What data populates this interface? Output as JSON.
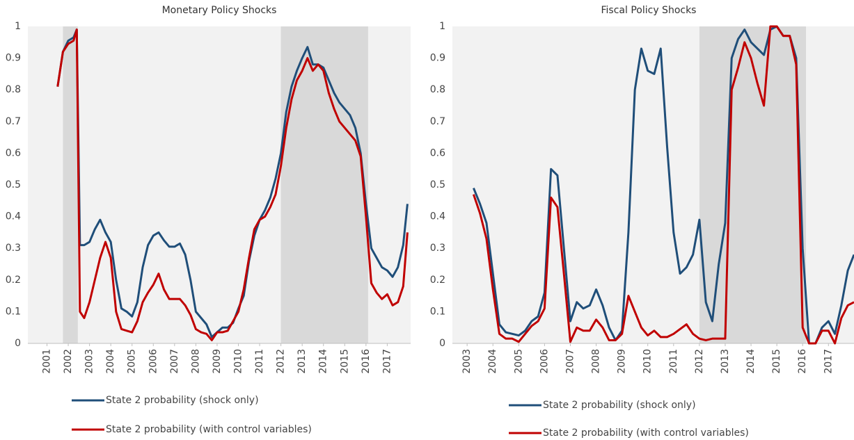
{
  "chart_data": [
    {
      "type": "line",
      "title": "Monetary Policy Shocks",
      "xlim": [
        2000.1,
        2018.1
      ],
      "xticks": [
        2001,
        2002,
        2003,
        2004,
        2005,
        2006,
        2007,
        2008,
        2009,
        2010,
        2011,
        2012,
        2013,
        2014,
        2015,
        2016,
        2017
      ],
      "ylim": [
        0,
        1
      ],
      "yticks": [
        0,
        0.1,
        0.2,
        0.3,
        0.4,
        0.5,
        0.6,
        0.7,
        0.8,
        0.9,
        1
      ],
      "grid": false,
      "shaded_ranges": [
        [
          2001.75,
          2002.45
        ],
        [
          2012.0,
          2016.1
        ]
      ],
      "x": [
        2001.5,
        2001.75,
        2002,
        2002.25,
        2002.4,
        2002.55,
        2002.75,
        2003,
        2003.25,
        2003.5,
        2003.75,
        2004,
        2004.25,
        2004.5,
        2004.75,
        2005,
        2005.25,
        2005.5,
        2005.75,
        2006,
        2006.25,
        2006.5,
        2006.75,
        2007,
        2007.25,
        2007.5,
        2007.75,
        2008,
        2008.25,
        2008.5,
        2008.75,
        2009,
        2009.25,
        2009.5,
        2009.75,
        2010,
        2010.25,
        2010.5,
        2010.75,
        2011,
        2011.25,
        2011.5,
        2011.75,
        2012,
        2012.25,
        2012.5,
        2012.75,
        2013,
        2013.25,
        2013.5,
        2013.75,
        2014,
        2014.25,
        2014.5,
        2014.75,
        2015,
        2015.25,
        2015.5,
        2015.75,
        2016,
        2016.25,
        2016.5,
        2016.75,
        2017,
        2017.25,
        2017.5,
        2017.75,
        2017.95
      ],
      "series": [
        {
          "name": "State 2 probability (shock only)",
          "color": "#1f4e79",
          "values": [
            0.81,
            0.92,
            0.955,
            0.965,
            0.99,
            0.31,
            0.31,
            0.32,
            0.36,
            0.39,
            0.35,
            0.32,
            0.2,
            0.11,
            0.1,
            0.085,
            0.13,
            0.24,
            0.31,
            0.34,
            0.35,
            0.325,
            0.305,
            0.305,
            0.315,
            0.28,
            0.2,
            0.1,
            0.08,
            0.06,
            0.02,
            0.035,
            0.05,
            0.05,
            0.065,
            0.11,
            0.15,
            0.26,
            0.34,
            0.39,
            0.42,
            0.46,
            0.52,
            0.6,
            0.73,
            0.81,
            0.86,
            0.9,
            0.935,
            0.88,
            0.88,
            0.87,
            0.83,
            0.79,
            0.76,
            0.74,
            0.72,
            0.68,
            0.6,
            0.44,
            0.3,
            0.27,
            0.24,
            0.23,
            0.21,
            0.24,
            0.31,
            0.44
          ]
        },
        {
          "name": "State 2 probability (with control variables)",
          "color": "#c00000",
          "values": [
            0.81,
            0.92,
            0.945,
            0.955,
            0.99,
            0.1,
            0.08,
            0.13,
            0.2,
            0.27,
            0.32,
            0.27,
            0.1,
            0.045,
            0.04,
            0.035,
            0.07,
            0.13,
            0.16,
            0.185,
            0.22,
            0.17,
            0.14,
            0.14,
            0.14,
            0.12,
            0.09,
            0.045,
            0.035,
            0.03,
            0.01,
            0.035,
            0.035,
            0.04,
            0.07,
            0.1,
            0.17,
            0.27,
            0.36,
            0.39,
            0.4,
            0.43,
            0.47,
            0.56,
            0.68,
            0.77,
            0.83,
            0.86,
            0.9,
            0.86,
            0.88,
            0.86,
            0.79,
            0.74,
            0.7,
            0.68,
            0.66,
            0.64,
            0.59,
            0.4,
            0.19,
            0.16,
            0.14,
            0.155,
            0.12,
            0.13,
            0.18,
            0.35
          ]
        }
      ]
    },
    {
      "type": "line",
      "title": "Fiscal Policy Shocks",
      "xlim": [
        2002.43,
        2017.99
      ],
      "xticks": [
        2003,
        2004,
        2005,
        2006,
        2007,
        2008,
        2009,
        2010,
        2011,
        2012,
        2013,
        2014,
        2015,
        2016,
        2017
      ],
      "ylim": [
        0,
        1
      ],
      "yticks": [
        0,
        0.1,
        0.2,
        0.3,
        0.4,
        0.5,
        0.6,
        0.7,
        0.8,
        0.9,
        1
      ],
      "grid": false,
      "shaded_ranges": [
        [
          2012.0,
          2016.13
        ]
      ],
      "x": [
        2003.25,
        2003.5,
        2003.75,
        2004,
        2004.25,
        2004.5,
        2004.75,
        2005,
        2005.25,
        2005.5,
        2005.75,
        2006,
        2006.25,
        2006.5,
        2006.75,
        2007,
        2007.25,
        2007.5,
        2007.75,
        2008,
        2008.25,
        2008.5,
        2008.75,
        2009,
        2009.25,
        2009.5,
        2009.75,
        2010,
        2010.25,
        2010.5,
        2010.75,
        2011,
        2011.25,
        2011.5,
        2011.75,
        2012,
        2012.25,
        2012.5,
        2012.75,
        2013,
        2013.25,
        2013.5,
        2013.75,
        2014,
        2014.25,
        2014.5,
        2014.75,
        2015,
        2015.25,
        2015.5,
        2015.75,
        2016,
        2016.25,
        2016.5,
        2016.75,
        2017,
        2017.25,
        2017.5,
        2017.75,
        2017.99
      ],
      "series": [
        {
          "name": "State 2 probability (shock only)",
          "color": "#1f4e79",
          "values": [
            0.49,
            0.44,
            0.38,
            0.22,
            0.06,
            0.035,
            0.03,
            0.025,
            0.04,
            0.07,
            0.085,
            0.16,
            0.55,
            0.53,
            0.3,
            0.07,
            0.13,
            0.11,
            0.12,
            0.17,
            0.12,
            0.05,
            0.01,
            0.04,
            0.35,
            0.8,
            0.93,
            0.86,
            0.85,
            0.93,
            0.62,
            0.35,
            0.22,
            0.24,
            0.28,
            0.39,
            0.13,
            0.07,
            0.25,
            0.38,
            0.9,
            0.96,
            0.99,
            0.95,
            0.93,
            0.91,
            0.99,
            1.0,
            0.97,
            0.97,
            0.9,
            0.3,
            0.0,
            0.0,
            0.05,
            0.07,
            0.03,
            0.12,
            0.23,
            0.28
          ]
        },
        {
          "name": "State 2 probability (with control variables)",
          "color": "#c00000",
          "values": [
            0.47,
            0.41,
            0.33,
            0.17,
            0.03,
            0.015,
            0.015,
            0.005,
            0.03,
            0.055,
            0.07,
            0.11,
            0.46,
            0.43,
            0.22,
            0.005,
            0.05,
            0.04,
            0.04,
            0.075,
            0.05,
            0.01,
            0.01,
            0.03,
            0.15,
            0.1,
            0.05,
            0.025,
            0.04,
            0.02,
            0.02,
            0.03,
            0.045,
            0.06,
            0.03,
            0.015,
            0.01,
            0.015,
            0.015,
            0.015,
            0.8,
            0.87,
            0.95,
            0.9,
            0.82,
            0.75,
            1.0,
            1.0,
            0.97,
            0.97,
            0.88,
            0.05,
            0.0,
            0.0,
            0.04,
            0.04,
            0.0,
            0.08,
            0.12,
            0.13
          ]
        }
      ]
    }
  ]
}
